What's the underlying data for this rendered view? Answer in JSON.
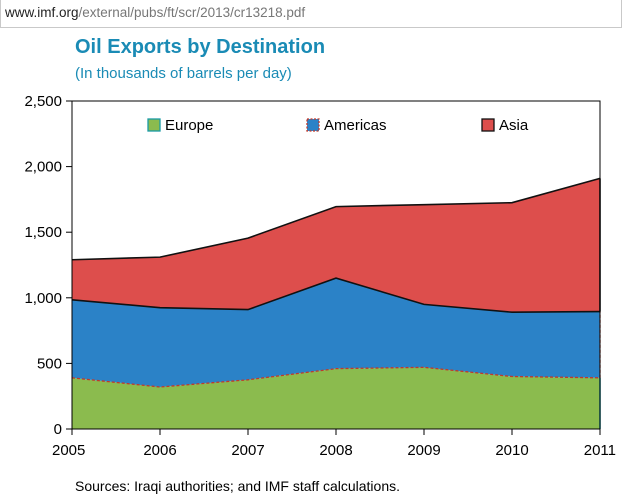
{
  "browser": {
    "url_host": "www.imf.org",
    "url_path": "/external/pubs/ft/scr/2013/cr13218.pdf"
  },
  "chart_data": {
    "type": "area",
    "stacked": true,
    "title": "Oil Exports by Destination",
    "subtitle": "(In thousands of barrels per day)",
    "x": [
      "2005",
      "2006",
      "2007",
      "2008",
      "2009",
      "2010",
      "2011"
    ],
    "ylim": [
      0,
      2500
    ],
    "yticks": [
      0,
      500,
      1000,
      1500,
      2000,
      2500
    ],
    "ytick_labels": [
      "0",
      "500",
      "1,000",
      "1,500",
      "2,000",
      "2,500"
    ],
    "grid": false,
    "legend_position": "top",
    "series": [
      {
        "name": "Europe",
        "color": "#8bbb4e",
        "values": [
          390,
          320,
          375,
          460,
          470,
          400,
          390
        ]
      },
      {
        "name": "Americas",
        "color": "#2b82c7",
        "values": [
          595,
          605,
          535,
          690,
          480,
          490,
          505
        ]
      },
      {
        "name": "Asia",
        "color": "#dd4e4c",
        "values": [
          305,
          385,
          545,
          545,
          760,
          835,
          1015
        ]
      }
    ],
    "source": "Sources: Iraqi authorities; and IMF staff calculations."
  }
}
